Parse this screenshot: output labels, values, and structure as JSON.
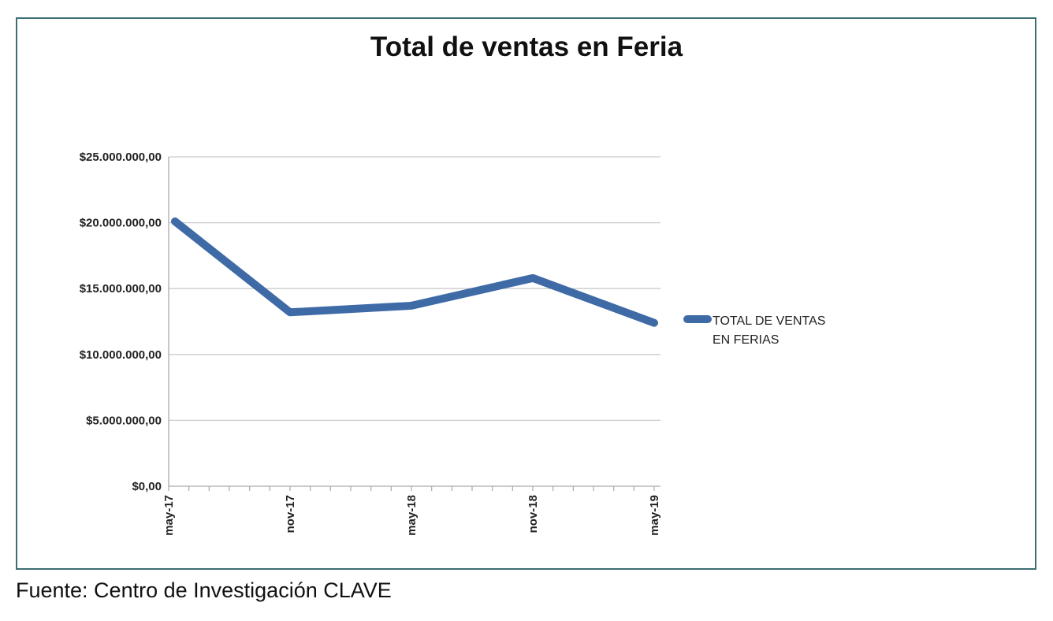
{
  "chart_data": {
    "type": "line",
    "title": "Total de ventas en Feria",
    "xlabel": "",
    "ylabel": "",
    "categories": [
      "may-17",
      "nov-17",
      "may-18",
      "nov-18",
      "may-19"
    ],
    "series": [
      {
        "name": "TOTAL DE VENTAS EN FERIAS",
        "color": "#3e6aa6",
        "values": [
          20100000,
          13200000,
          13700000,
          15800000,
          12400000
        ]
      }
    ],
    "ylim": [
      0,
      25000000
    ],
    "yticks": [
      0,
      5000000,
      10000000,
      15000000,
      20000000,
      25000000
    ],
    "ytick_labels": [
      "$0,00",
      "$5.000.000,00",
      "$10.000.000,00",
      "$15.000.000,00",
      "$20.000.000,00",
      "$25.000.000,00"
    ],
    "minor_ticks_per_interval": 6,
    "grid": true,
    "legend": "right"
  },
  "source": "Fuente: Centro de Investigación CLAVE"
}
